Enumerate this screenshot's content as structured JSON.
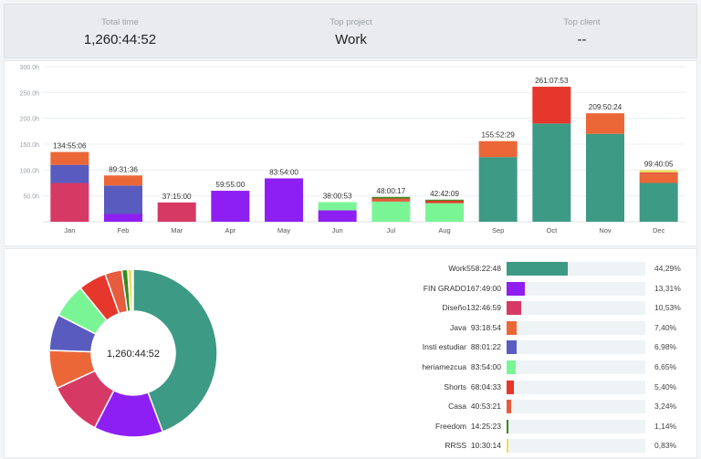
{
  "summary": {
    "total_time_label": "Total time",
    "total_time_value": "1,260:44:52",
    "top_project_label": "Top project",
    "top_project_value": "Work",
    "top_client_label": "Top client",
    "top_client_value": "--"
  },
  "colors": {
    "work": "#3d9a84",
    "fin_grado": "#8e1ff2",
    "diseno": "#d73965",
    "java": "#ec6738",
    "insti": "#5a5bbf",
    "heriamezcua": "#7af596",
    "shorts": "#e5372c",
    "casa": "#e55c3e",
    "freedom": "#3a8a1e",
    "rrss": "#e8e05a"
  },
  "chart_data": {
    "type": "bar",
    "stacked": true,
    "title": "",
    "xlabel": "",
    "ylabel": "",
    "ylim": [
      0,
      300
    ],
    "y_ticks": [
      "50.0h",
      "100.0h",
      "150.0h",
      "200.0h",
      "250.0h",
      "300.0h"
    ],
    "y_tick_values": [
      50,
      100,
      150,
      200,
      250,
      300
    ],
    "grid": true,
    "categories": [
      "Jan",
      "Feb",
      "Mar",
      "Apr",
      "May",
      "Jun",
      "Jul",
      "Aug",
      "Sep",
      "Oct",
      "Nov",
      "Dec"
    ],
    "totals_labels": [
      "134:55:06",
      "89:31:36",
      "37:15:00",
      "59:55:00",
      "83:54:00",
      "38:00:53",
      "48:00:17",
      "42:42:09",
      "155:52:29",
      "261:07:53",
      "209:50:24",
      "99:40:05"
    ],
    "totals_hours": [
      134.9,
      89.5,
      37.3,
      59.9,
      83.9,
      38.0,
      48.0,
      42.7,
      155.9,
      261.1,
      209.8,
      99.7
    ],
    "series": [
      {
        "name": "Work",
        "color_key": "work",
        "values": [
          0,
          0,
          0,
          0,
          0,
          0,
          0,
          0,
          125,
          190,
          170,
          75
        ]
      },
      {
        "name": "FIN GRADO",
        "color_key": "fin_grado",
        "values": [
          0,
          15,
          0,
          59.9,
          83.9,
          22,
          0,
          0,
          0,
          0,
          0,
          0
        ]
      },
      {
        "name": "Diseño",
        "color_key": "diseno",
        "values": [
          75,
          0,
          37.3,
          0,
          0,
          0,
          0,
          0,
          0,
          0,
          0,
          0
        ]
      },
      {
        "name": "Insti estudiar",
        "color_key": "insti",
        "values": [
          35,
          55,
          0,
          0,
          0,
          0,
          0,
          0,
          0,
          0,
          0,
          0
        ]
      },
      {
        "name": "heriamezcua",
        "color_key": "heriamezcua",
        "values": [
          0,
          0,
          0,
          0,
          0,
          16,
          39,
          36,
          0,
          0,
          0,
          0
        ]
      },
      {
        "name": "Java",
        "color_key": "java",
        "values": [
          24.9,
          19.5,
          0,
          0,
          0,
          0,
          0,
          0,
          30.9,
          0,
          39.8,
          15.7
        ]
      },
      {
        "name": "Shorts",
        "color_key": "shorts",
        "values": [
          0,
          0,
          0,
          0,
          0,
          0,
          0,
          4.7,
          0,
          71.1,
          0,
          0
        ]
      },
      {
        "name": "Casa",
        "color_key": "casa",
        "values": [
          0,
          0,
          0,
          0,
          0,
          0,
          6,
          0,
          0,
          0,
          0,
          5
        ]
      },
      {
        "name": "RRSS",
        "color_key": "rrss",
        "values": [
          0,
          0,
          0,
          0,
          0,
          0,
          0,
          0,
          0,
          0,
          0,
          4
        ]
      },
      {
        "name": "Freedom",
        "color_key": "freedom",
        "values": [
          0,
          0,
          0,
          0,
          0,
          0,
          3,
          2,
          0,
          0,
          0,
          0
        ]
      }
    ]
  },
  "donut": {
    "center_label": "1,260:44:52",
    "slices": [
      {
        "name": "Work",
        "pct": 44.29,
        "color_key": "work"
      },
      {
        "name": "FIN GRADO",
        "pct": 13.31,
        "color_key": "fin_grado"
      },
      {
        "name": "Diseño",
        "pct": 10.53,
        "color_key": "diseno"
      },
      {
        "name": "Java",
        "pct": 7.4,
        "color_key": "java"
      },
      {
        "name": "Insti estudiar",
        "pct": 6.98,
        "color_key": "insti"
      },
      {
        "name": "heriamezcua",
        "pct": 6.65,
        "color_key": "heriamezcua"
      },
      {
        "name": "Shorts",
        "pct": 5.4,
        "color_key": "shorts"
      },
      {
        "name": "Casa",
        "pct": 3.24,
        "color_key": "casa"
      },
      {
        "name": "Freedom",
        "pct": 1.14,
        "color_key": "freedom"
      },
      {
        "name": "RRSS",
        "pct": 0.83,
        "color_key": "rrss"
      }
    ]
  },
  "projects": [
    {
      "name": "Work",
      "duration": "558:22:48",
      "pct_text": "44,29%",
      "pct": 44.29,
      "color_key": "work"
    },
    {
      "name": "FIN GRADO",
      "duration": "167:49:00",
      "pct_text": "13,31%",
      "pct": 13.31,
      "color_key": "fin_grado"
    },
    {
      "name": "Diseño",
      "duration": "132:46:59",
      "pct_text": "10,53%",
      "pct": 10.53,
      "color_key": "diseno"
    },
    {
      "name": "Java",
      "duration": "93:18:54",
      "pct_text": "7,40%",
      "pct": 7.4,
      "color_key": "java"
    },
    {
      "name": "Insti estudiar",
      "duration": "88:01:22",
      "pct_text": "6,98%",
      "pct": 6.98,
      "color_key": "insti"
    },
    {
      "name": "heriamezcua",
      "duration": "83:54:00",
      "pct_text": "6,65%",
      "pct": 6.65,
      "color_key": "heriamezcua"
    },
    {
      "name": "Shorts",
      "duration": "68:04:33",
      "pct_text": "5,40%",
      "pct": 5.4,
      "color_key": "shorts"
    },
    {
      "name": "Casa",
      "duration": "40:53:21",
      "pct_text": "3,24%",
      "pct": 3.24,
      "color_key": "casa"
    },
    {
      "name": "Freedom",
      "duration": "14:25:23",
      "pct_text": "1,14%",
      "pct": 1.14,
      "color_key": "freedom"
    },
    {
      "name": "RRSS",
      "duration": "10:30:14",
      "pct_text": "0,83%",
      "pct": 0.83,
      "color_key": "rrss"
    }
  ]
}
